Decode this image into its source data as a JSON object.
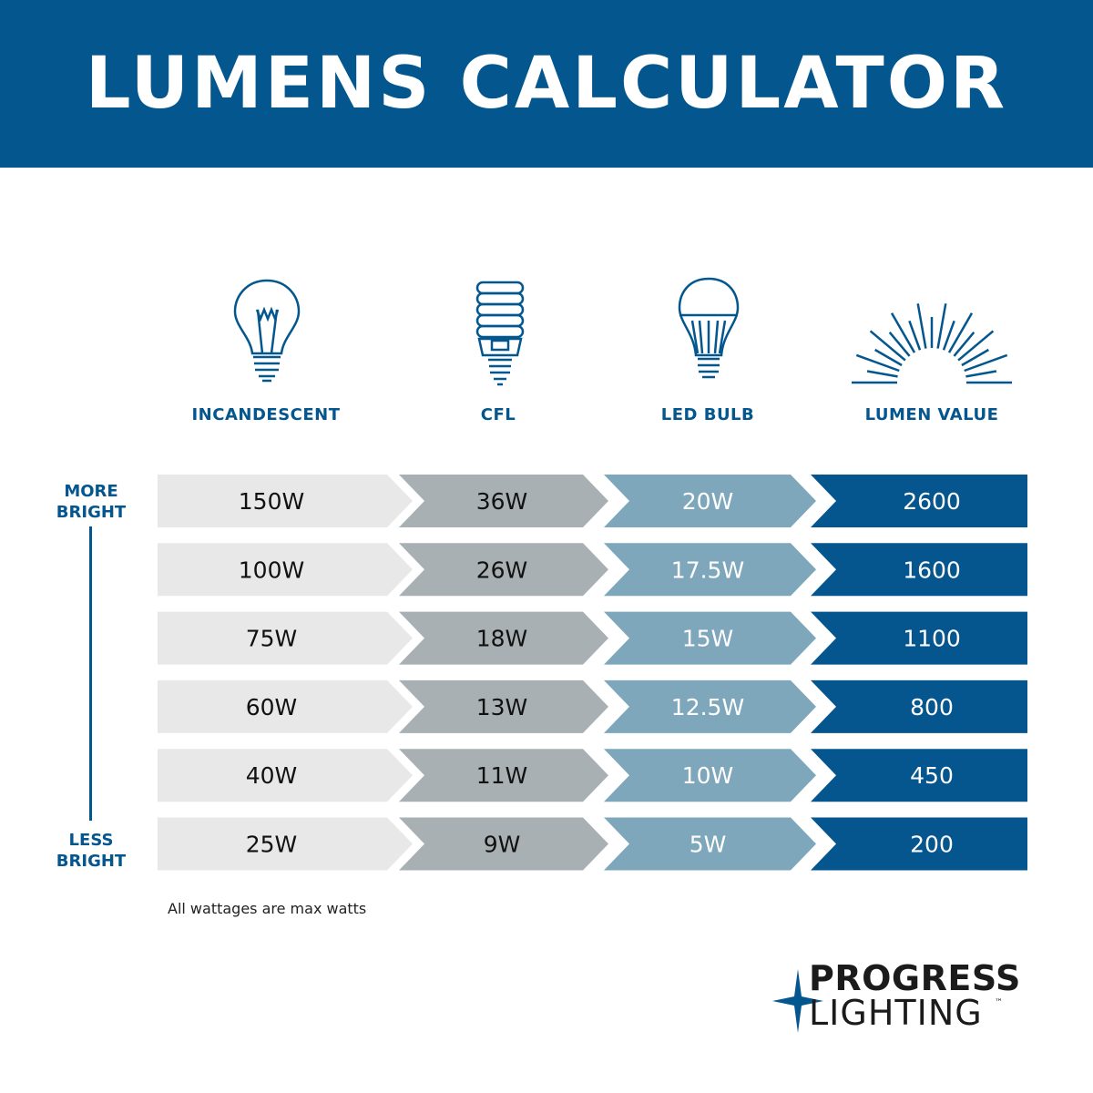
{
  "title": "LUMENS CALCULATOR",
  "columns": [
    {
      "label": "INCANDESCENT",
      "icon": "incandescent-bulb-icon",
      "color": "#e8e8e8",
      "text_color": "#111111"
    },
    {
      "label": "CFL",
      "icon": "cfl-bulb-icon",
      "color": "#a9b0b3",
      "text_color": "#111111"
    },
    {
      "label": "LED BULB",
      "icon": "led-bulb-icon",
      "color": "#7ea7bb",
      "text_color": "#ffffff"
    },
    {
      "label": "LUMEN VALUE",
      "icon": "sunburst-icon",
      "color": "#05568f",
      "text_color": "#ffffff"
    }
  ],
  "scale": {
    "top": "MORE\nBRIGHT",
    "top_lines": [
      "MORE",
      "BRIGHT"
    ],
    "bottom_lines": [
      "LESS",
      "BRIGHT"
    ]
  },
  "rows": [
    [
      "150W",
      "36W",
      "20W",
      "2600"
    ],
    [
      "100W",
      "26W",
      "17.5W",
      "1600"
    ],
    [
      "75W",
      "18W",
      "15W",
      "1100"
    ],
    [
      "60W",
      "13W",
      "12.5W",
      "800"
    ],
    [
      "40W",
      "11W",
      "10W",
      "450"
    ],
    [
      "25W",
      "9W",
      "5W",
      "200"
    ]
  ],
  "note": "All wattages are max watts",
  "logo": {
    "line1": "PROGRESS",
    "line2": "LIGHTING",
    "tm": "™"
  },
  "brand_color": "#04568e"
}
